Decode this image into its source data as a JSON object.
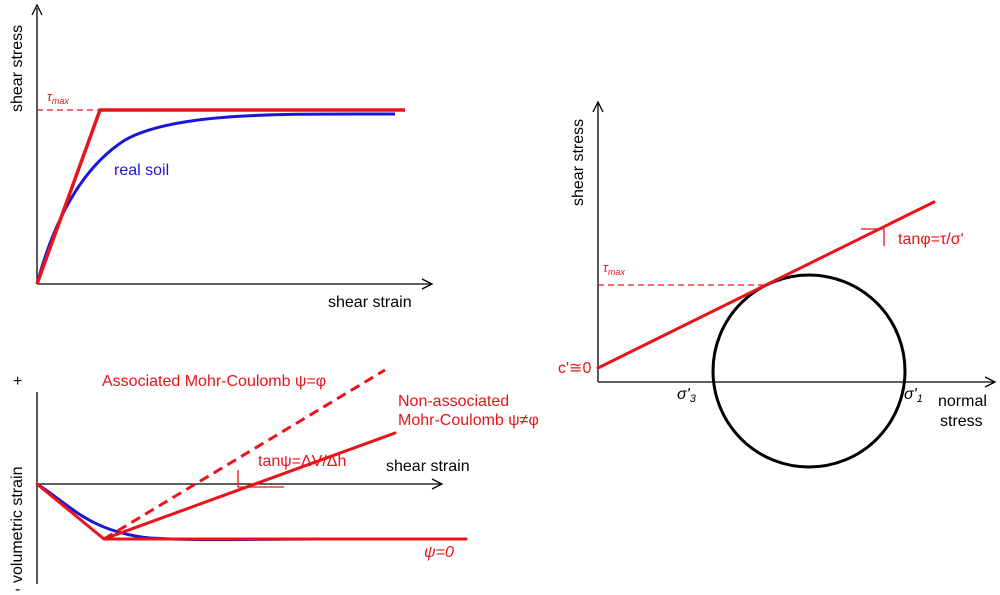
{
  "colors": {
    "red": "#e8141a",
    "blue": "#1a16d6",
    "black": "#000000"
  },
  "top_left": {
    "y_label": "shear stress",
    "x_label": "shear strain",
    "tau_symbol": "τ",
    "tau_sub": "max",
    "curve_label": "real soil"
  },
  "bottom_left": {
    "y_label": "volumetric strain",
    "plus": "+",
    "minus": "-",
    "x_label": "shear strain",
    "assoc_label": "Associated Mohr-Coulomb ψ=φ",
    "nonassoc_line1": "Non-associated",
    "nonassoc_line2": "Mohr-Coulomb ψ≠φ",
    "tan_label": "tanψ=ΔV/Δh",
    "psi_zero": "ψ=0"
  },
  "right": {
    "y_label": "shear stress",
    "x_label_line1": "normal",
    "x_label_line2": "stress",
    "tau_symbol": "τ",
    "tau_sub": "max",
    "cohesion_label": "c'≅0",
    "tan_label": "tanφ=τ/σ'",
    "sigma3": "σ'",
    "sigma3_sub": "3",
    "sigma1": "σ'",
    "sigma1_sub": "1"
  }
}
